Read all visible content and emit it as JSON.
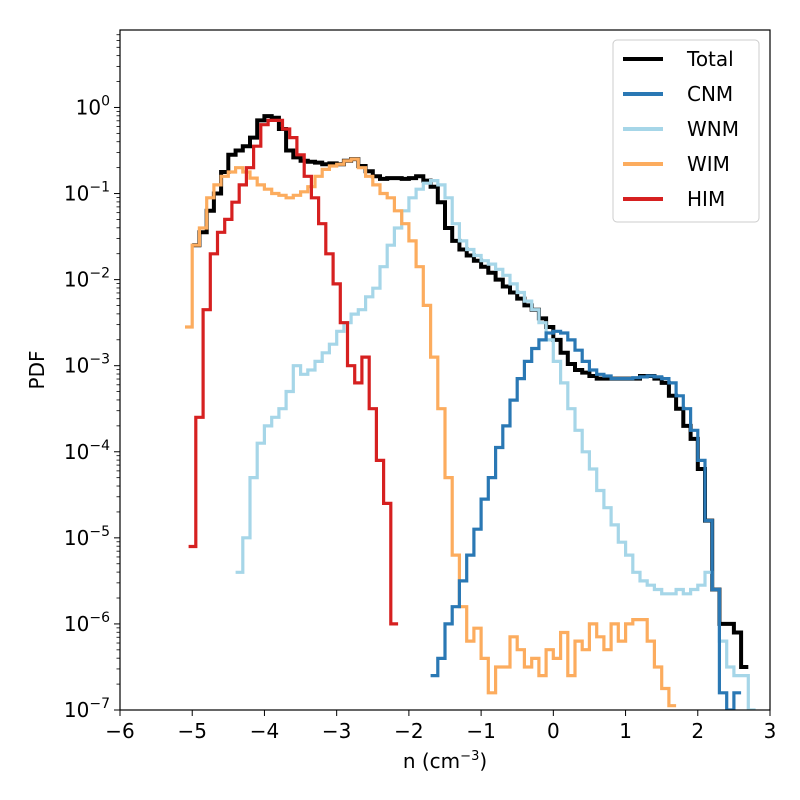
{
  "chart_data": {
    "type": "line",
    "style": "step",
    "title": "",
    "xlabel": "n (cm",
    "xlabel_sup": "−3",
    "xlabel_end": ")",
    "ylabel": "PDF",
    "xlim": [
      -6,
      3
    ],
    "ylim_log10": [
      -7,
      0.9
    ],
    "yscale": "log",
    "legend_position": "top-right",
    "x_ticks": [
      {
        "value": -6,
        "label": "−6"
      },
      {
        "value": -5,
        "label": "−5"
      },
      {
        "value": -4,
        "label": "−4"
      },
      {
        "value": -3,
        "label": "−3"
      },
      {
        "value": -2,
        "label": "−2"
      },
      {
        "value": -1,
        "label": "−1"
      },
      {
        "value": 0,
        "label": "0"
      },
      {
        "value": 1,
        "label": "1"
      },
      {
        "value": 2,
        "label": "2"
      },
      {
        "value": 3,
        "label": "3"
      }
    ],
    "y_ticks": [
      {
        "exp": 0,
        "base": "10",
        "sup": "0"
      },
      {
        "exp": -1,
        "base": "10",
        "sup": "−1"
      },
      {
        "exp": -2,
        "base": "10",
        "sup": "−2"
      },
      {
        "exp": -3,
        "base": "10",
        "sup": "−3"
      },
      {
        "exp": -4,
        "base": "10",
        "sup": "−4"
      },
      {
        "exp": -5,
        "base": "10",
        "sup": "−5"
      },
      {
        "exp": -6,
        "base": "10",
        "sup": "−6"
      },
      {
        "exp": -7,
        "base": "10",
        "sup": "−7"
      }
    ],
    "series": [
      {
        "name": "Total",
        "color": "#000000",
        "x": [
          -4.95,
          -4.85,
          -4.75,
          -4.65,
          -4.55,
          -4.45,
          -4.35,
          -4.25,
          -4.15,
          -4.05,
          -3.95,
          -3.85,
          -3.75,
          -3.65,
          -3.55,
          -3.45,
          -3.35,
          -3.25,
          -3.15,
          -3.05,
          -2.95,
          -2.85,
          -2.75,
          -2.65,
          -2.55,
          -2.45,
          -2.35,
          -2.25,
          -2.15,
          -2.05,
          -1.95,
          -1.85,
          -1.75,
          -1.65,
          -1.55,
          -1.45,
          -1.35,
          -1.25,
          -1.15,
          -1.05,
          -0.95,
          -0.85,
          -0.75,
          -0.65,
          -0.55,
          -0.45,
          -0.35,
          -0.25,
          -0.15,
          -0.05,
          0.05,
          0.15,
          0.25,
          0.35,
          0.45,
          0.55,
          0.65,
          0.75,
          0.85,
          0.95,
          1.05,
          1.15,
          1.25,
          1.35,
          1.45,
          1.55,
          1.65,
          1.75,
          1.85,
          1.95,
          2.05,
          2.15,
          2.25,
          2.35,
          2.45,
          2.55,
          2.65
        ],
        "logy": [
          -1.6,
          -1.45,
          -1.2,
          -1.0,
          -0.75,
          -0.55,
          -0.5,
          -0.45,
          -0.35,
          -0.15,
          -0.1,
          -0.12,
          -0.25,
          -0.5,
          -0.58,
          -0.62,
          -0.63,
          -0.64,
          -0.66,
          -0.65,
          -0.66,
          -0.62,
          -0.6,
          -0.68,
          -0.74,
          -0.8,
          -0.83,
          -0.82,
          -0.82,
          -0.83,
          -0.82,
          -0.8,
          -0.85,
          -0.92,
          -1.1,
          -1.4,
          -1.55,
          -1.65,
          -1.72,
          -1.78,
          -1.85,
          -1.92,
          -2.0,
          -2.08,
          -2.15,
          -2.22,
          -2.3,
          -2.35,
          -2.45,
          -2.55,
          -2.7,
          -2.85,
          -2.98,
          -3.05,
          -3.08,
          -3.12,
          -3.15,
          -3.15,
          -3.15,
          -3.15,
          -3.15,
          -3.15,
          -3.12,
          -3.12,
          -3.15,
          -3.2,
          -3.35,
          -3.5,
          -3.7,
          -3.85,
          -4.2,
          -4.8,
          -5.6,
          -6.0,
          -6.0,
          -6.1,
          -6.5
        ]
      },
      {
        "name": "CNM",
        "color": "#2a78b4",
        "x": [
          -1.65,
          -1.55,
          -1.45,
          -1.35,
          -1.25,
          -1.15,
          -1.05,
          -0.95,
          -0.85,
          -0.75,
          -0.65,
          -0.55,
          -0.45,
          -0.35,
          -0.25,
          -0.15,
          -0.05,
          0.05,
          0.15,
          0.25,
          0.35,
          0.45,
          0.55,
          0.65,
          0.75,
          0.85,
          0.95,
          1.05,
          1.15,
          1.25,
          1.35,
          1.45,
          1.55,
          1.65,
          1.75,
          1.85,
          1.95,
          2.05,
          2.15,
          2.25,
          2.35,
          2.45,
          2.55
        ],
        "logy": [
          -6.6,
          -6.4,
          -6.0,
          -5.8,
          -5.5,
          -5.2,
          -4.9,
          -4.55,
          -4.3,
          -3.95,
          -3.7,
          -3.4,
          -3.15,
          -2.95,
          -2.8,
          -2.7,
          -2.62,
          -2.6,
          -2.62,
          -2.7,
          -2.82,
          -2.95,
          -3.05,
          -3.1,
          -3.12,
          -3.15,
          -3.15,
          -3.15,
          -3.14,
          -3.13,
          -3.12,
          -3.13,
          -3.15,
          -3.2,
          -3.35,
          -3.5,
          -3.75,
          -4.1,
          -4.8,
          -5.6,
          -6.8,
          -7.0,
          -6.8
        ]
      },
      {
        "name": "WNM",
        "color": "#a6d6e8",
        "x": [
          -4.35,
          -4.25,
          -4.15,
          -4.05,
          -3.95,
          -3.85,
          -3.75,
          -3.65,
          -3.55,
          -3.45,
          -3.35,
          -3.25,
          -3.15,
          -3.05,
          -2.95,
          -2.85,
          -2.75,
          -2.65,
          -2.55,
          -2.45,
          -2.35,
          -2.25,
          -2.15,
          -2.05,
          -1.95,
          -1.85,
          -1.75,
          -1.65,
          -1.55,
          -1.45,
          -1.35,
          -1.25,
          -1.15,
          -1.05,
          -0.95,
          -0.85,
          -0.75,
          -0.65,
          -0.55,
          -0.45,
          -0.35,
          -0.25,
          -0.15,
          -0.05,
          0.05,
          0.15,
          0.25,
          0.35,
          0.45,
          0.55,
          0.65,
          0.75,
          0.85,
          0.95,
          1.05,
          1.15,
          1.25,
          1.35,
          1.45,
          1.55,
          1.65,
          1.75,
          1.85,
          1.95,
          2.05,
          2.15,
          2.25,
          2.35,
          2.45,
          2.55,
          2.65,
          2.75
        ],
        "logy": [
          -5.4,
          -5.0,
          -4.3,
          -3.9,
          -3.7,
          -3.6,
          -3.5,
          -3.3,
          -3.0,
          -3.1,
          -3.05,
          -2.95,
          -2.85,
          -2.75,
          -2.6,
          -2.5,
          -2.4,
          -2.35,
          -2.2,
          -2.1,
          -1.85,
          -1.6,
          -1.4,
          -1.2,
          -1.05,
          -0.95,
          -0.88,
          -0.85,
          -0.9,
          -1.05,
          -1.35,
          -1.55,
          -1.65,
          -1.72,
          -1.78,
          -1.82,
          -1.88,
          -1.95,
          -2.05,
          -2.15,
          -2.25,
          -2.35,
          -2.5,
          -2.7,
          -2.95,
          -3.2,
          -3.5,
          -3.75,
          -4.0,
          -4.2,
          -4.45,
          -4.65,
          -4.85,
          -5.05,
          -5.2,
          -5.4,
          -5.5,
          -5.55,
          -5.6,
          -5.65,
          -5.65,
          -5.6,
          -5.65,
          -5.6,
          -5.55,
          -5.4,
          -5.6,
          -6.2,
          -6.5,
          -6.6,
          -6.6,
          -7.0
        ]
      },
      {
        "name": "WIM",
        "color": "#fcac5e",
        "x": [
          -5.05,
          -4.95,
          -4.85,
          -4.75,
          -4.65,
          -4.55,
          -4.45,
          -4.35,
          -4.25,
          -4.15,
          -4.05,
          -3.95,
          -3.85,
          -3.75,
          -3.65,
          -3.55,
          -3.45,
          -3.35,
          -3.25,
          -3.15,
          -3.05,
          -2.95,
          -2.85,
          -2.75,
          -2.65,
          -2.55,
          -2.45,
          -2.35,
          -2.25,
          -2.15,
          -2.05,
          -1.95,
          -1.85,
          -1.75,
          -1.65,
          -1.55,
          -1.45,
          -1.35,
          -1.25,
          -1.15,
          -1.05,
          -0.95,
          -0.85,
          -0.75,
          -0.65,
          -0.55,
          -0.45,
          -0.35,
          -0.25,
          -0.15,
          -0.05,
          0.05,
          0.15,
          0.25,
          0.35,
          0.45,
          0.55,
          0.65,
          0.75,
          0.85,
          0.95,
          1.05,
          1.15,
          1.25,
          1.35,
          1.45,
          1.55,
          1.65
        ],
        "logy": [
          -2.55,
          -1.6,
          -1.4,
          -1.05,
          -0.9,
          -0.8,
          -0.75,
          -0.7,
          -0.75,
          -0.82,
          -0.9,
          -0.95,
          -1.0,
          -1.02,
          -1.05,
          -1.02,
          -0.98,
          -0.92,
          -0.8,
          -0.72,
          -0.68,
          -0.66,
          -0.62,
          -0.6,
          -0.7,
          -0.8,
          -0.9,
          -1.0,
          -1.05,
          -1.2,
          -1.35,
          -1.55,
          -1.85,
          -2.3,
          -2.9,
          -3.5,
          -4.3,
          -5.2,
          -5.8,
          -6.2,
          -6.05,
          -6.4,
          -6.8,
          -6.5,
          -6.5,
          -6.15,
          -6.3,
          -6.5,
          -6.4,
          -6.6,
          -6.3,
          -6.4,
          -6.1,
          -6.6,
          -6.2,
          -6.3,
          -6.0,
          -6.15,
          -6.3,
          -6.0,
          -6.2,
          -6.0,
          -5.95,
          -5.95,
          -6.2,
          -6.5,
          -6.75,
          -6.95
        ]
      },
      {
        "name": "HIM",
        "color": "#d62020",
        "x": [
          -5.0,
          -4.9,
          -4.8,
          -4.7,
          -4.6,
          -4.5,
          -4.4,
          -4.3,
          -4.2,
          -4.1,
          -4.0,
          -3.9,
          -3.8,
          -3.7,
          -3.6,
          -3.5,
          -3.4,
          -3.3,
          -3.2,
          -3.1,
          -3.0,
          -2.9,
          -2.8,
          -2.7,
          -2.6,
          -2.5,
          -2.4,
          -2.3,
          -2.2
        ],
        "logy": [
          -5.1,
          -3.6,
          -2.35,
          -1.7,
          -1.45,
          -1.3,
          -1.1,
          -0.9,
          -0.7,
          -0.45,
          -0.2,
          -0.15,
          -0.15,
          -0.25,
          -0.35,
          -0.55,
          -0.8,
          -1.05,
          -1.35,
          -1.7,
          -2.05,
          -2.5,
          -3.0,
          -3.2,
          -2.9,
          -3.5,
          -4.1,
          -4.6,
          -6.0
        ]
      }
    ]
  }
}
